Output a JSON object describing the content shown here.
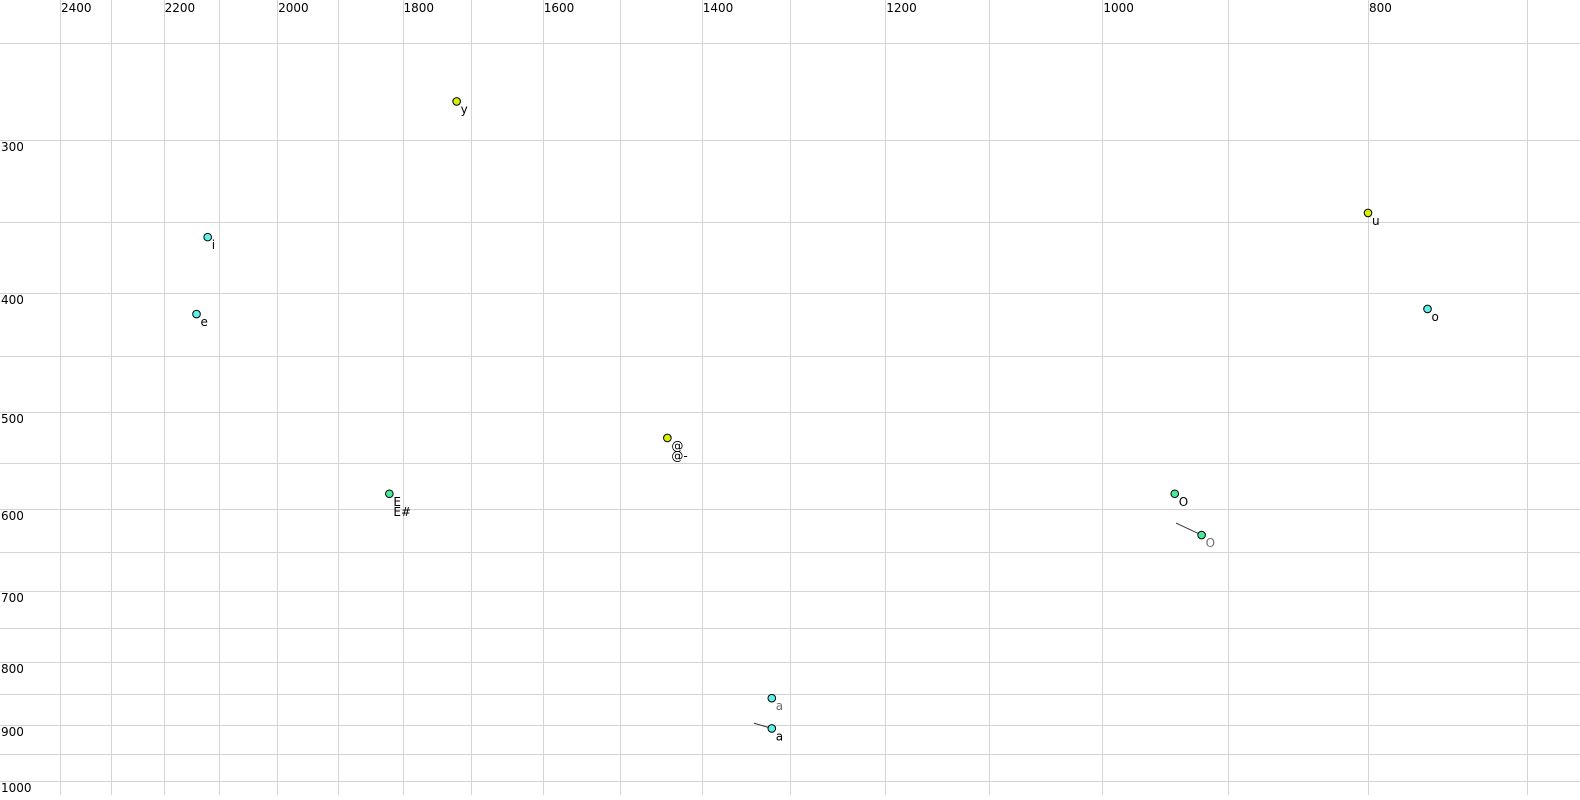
{
  "chart_data": {
    "type": "scatter",
    "title": "",
    "xlabel": "",
    "ylabel": "",
    "x_scale": "log",
    "y_scale": "log",
    "x_reversed": true,
    "x_axis_position": "top",
    "xlim": [
      2400,
      700
    ],
    "ylim": [
      250,
      1000
    ],
    "grid": true,
    "x_grid_values": [
      2400,
      2300,
      2200,
      2100,
      2000,
      1900,
      1800,
      1700,
      1600,
      1500,
      1400,
      1300,
      1200,
      1100,
      1000,
      900,
      800,
      700
    ],
    "y_grid_values": [
      250,
      300,
      350,
      400,
      450,
      500,
      550,
      600,
      650,
      700,
      750,
      800,
      850,
      900,
      950,
      1000
    ],
    "x_tick_labels": [
      "2400",
      "2200",
      "2000",
      "1800",
      "1600",
      "1400",
      "1200",
      "1000",
      "800"
    ],
    "y_tick_labels": [
      "300",
      "400",
      "500",
      "600",
      "700",
      "800",
      "900",
      "1000"
    ],
    "colors": {
      "front": "#5ff0ea",
      "rounded": "#d8f000",
      "green": "#45eb98",
      "grid": "#d4d4d4",
      "gray_label": "#707070"
    },
    "points": [
      {
        "label": "y",
        "sublabel": "",
        "x": 1720,
        "y": 279,
        "color": "#d8f000",
        "label_color": "#000000"
      },
      {
        "label": "i",
        "sublabel": "",
        "x": 2120,
        "y": 360,
        "color": "#5ff0ea",
        "label_color": "#000000"
      },
      {
        "label": "e",
        "sublabel": "",
        "x": 2140,
        "y": 416,
        "color": "#5ff0ea",
        "label_color": "#000000"
      },
      {
        "label": "E",
        "sublabel": "E#",
        "x": 1820,
        "y": 583,
        "color": "#45eb98",
        "label_color": "#000000"
      },
      {
        "label": "@",
        "sublabel": "@-",
        "x": 1441,
        "y": 525,
        "color": "#d8f000",
        "label_color": "#000000"
      },
      {
        "label": "u",
        "sublabel": "",
        "x": 800,
        "y": 344,
        "color": "#d8f000",
        "label_color": "#000000"
      },
      {
        "label": "o",
        "sublabel": "",
        "x": 761,
        "y": 412,
        "color": "#5ff0ea",
        "label_color": "#000000"
      },
      {
        "label": "O",
        "sublabel": "",
        "x": 941,
        "y": 583,
        "color": "#45eb98",
        "label_color": "#000000"
      },
      {
        "label": "O",
        "sublabel": "",
        "x": 920,
        "y": 630,
        "color": "#45eb98",
        "label_color": "#707070",
        "trail_from": [
          940,
          616
        ]
      },
      {
        "label": "a",
        "sublabel": "",
        "x": 1320,
        "y": 856,
        "color": "#5ff0ea",
        "label_color": "#707070"
      },
      {
        "label": "a",
        "sublabel": "",
        "x": 1320,
        "y": 906,
        "color": "#5ff0ea",
        "label_color": "#000000",
        "trail_from": [
          1340,
          897
        ]
      }
    ]
  }
}
